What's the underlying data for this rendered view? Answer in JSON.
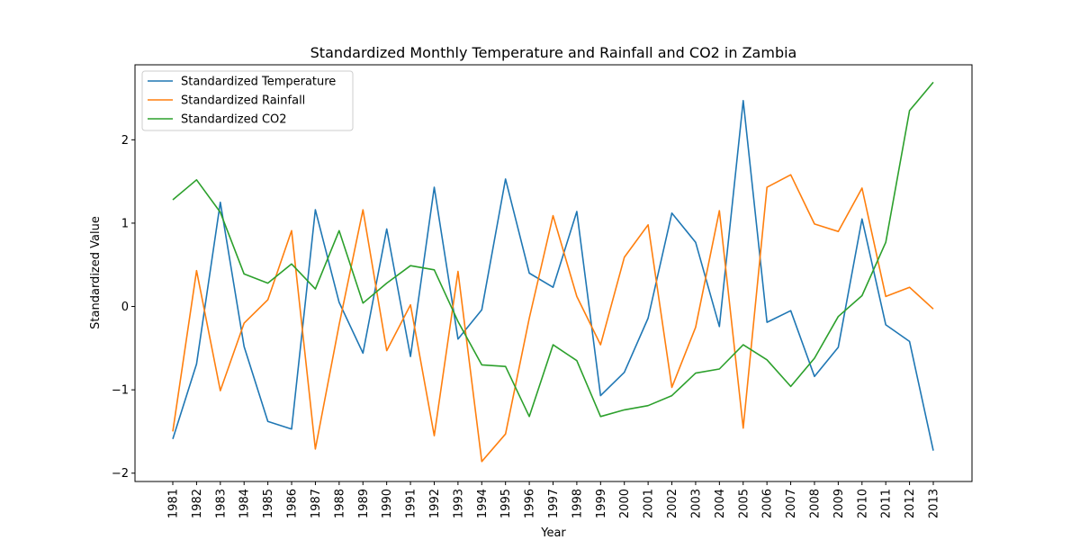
{
  "chart_data": {
    "type": "line",
    "title": "Standardized Monthly Temperature and Rainfall and CO2 in Zambia",
    "xlabel": "Year",
    "ylabel": "Standardized Value",
    "ylim": [
      -2.1,
      2.9
    ],
    "yticks": [
      -2,
      -1,
      0,
      1,
      2
    ],
    "ytick_labels": [
      "−2",
      "−1",
      "0",
      "1",
      "2"
    ],
    "grid": false,
    "legend_position": "top-left",
    "x": [
      "1981",
      "1982",
      "1983",
      "1984",
      "1985",
      "1986",
      "1987",
      "1988",
      "1989",
      "1990",
      "1991",
      "1992",
      "1993",
      "1994",
      "1995",
      "1996",
      "1997",
      "1998",
      "1999",
      "2000",
      "2001",
      "2002",
      "2003",
      "2004",
      "2005",
      "2006",
      "2007",
      "2008",
      "2009",
      "2010",
      "2011",
      "2012",
      "2013"
    ],
    "series": [
      {
        "name": "Standardized Temperature",
        "color": "#1f77b4",
        "values": [
          -1.59,
          -0.69,
          1.25,
          -0.48,
          -1.38,
          -1.47,
          1.16,
          0.05,
          -0.56,
          0.93,
          -0.6,
          1.43,
          -0.39,
          -0.04,
          1.53,
          0.4,
          0.23,
          1.14,
          -1.07,
          -0.79,
          -0.14,
          1.12,
          0.77,
          -0.24,
          2.47,
          -0.19,
          -0.05,
          -0.84,
          -0.49,
          1.05,
          -0.22,
          -0.42,
          -1.73
        ]
      },
      {
        "name": "Standardized Rainfall",
        "color": "#ff7f0e",
        "values": [
          -1.5,
          0.43,
          -1.01,
          -0.2,
          0.08,
          0.91,
          -1.71,
          -0.22,
          1.16,
          -0.53,
          0.02,
          -1.55,
          0.42,
          -1.86,
          -1.53,
          -0.14,
          1.09,
          0.12,
          -0.46,
          0.59,
          0.98,
          -0.97,
          -0.25,
          1.15,
          -1.46,
          1.43,
          1.58,
          0.99,
          0.9,
          1.42,
          0.12,
          0.23,
          -0.03
        ]
      },
      {
        "name": "Standardized CO2",
        "color": "#2ca02c",
        "values": [
          1.28,
          1.52,
          1.13,
          0.39,
          0.28,
          0.51,
          0.21,
          0.91,
          0.04,
          0.28,
          0.49,
          0.44,
          -0.18,
          -0.7,
          -0.72,
          -1.32,
          -0.46,
          -0.65,
          -1.32,
          -1.24,
          -1.19,
          -1.07,
          -0.8,
          -0.75,
          -0.46,
          -0.64,
          -0.96,
          -0.62,
          -0.12,
          0.13,
          0.77,
          2.35,
          2.69
        ]
      }
    ]
  }
}
